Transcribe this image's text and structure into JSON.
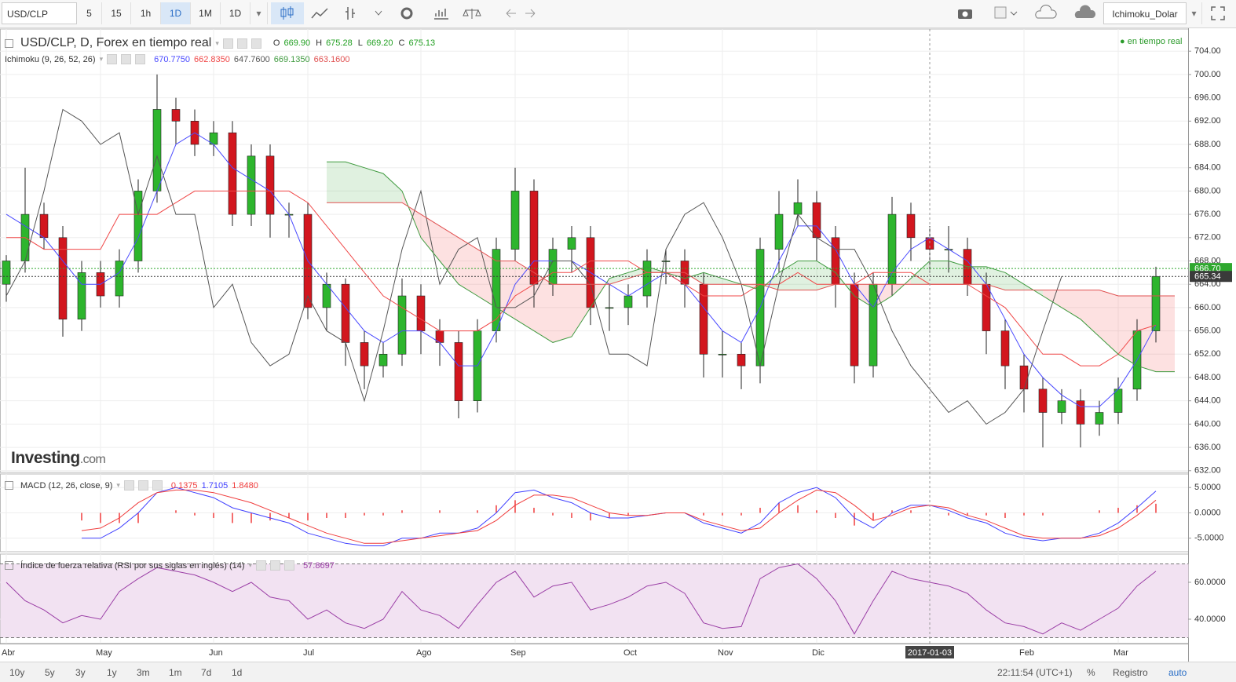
{
  "toolbar": {
    "symbol": "USD/CLP",
    "intervals": [
      "5",
      "15",
      "1h",
      "1D",
      "1M",
      "1D"
    ],
    "active_interval": 3,
    "template": "Ichimoku_Dolar"
  },
  "status": {
    "live": "en tiempo real"
  },
  "logo": {
    "brand": "Investing",
    "suffix": ".com"
  },
  "footer": {
    "ranges": [
      "10y",
      "5y",
      "3y",
      "1y",
      "3m",
      "1m",
      "7d",
      "1d"
    ],
    "time": "22:11:54 (UTC+1)",
    "percent": "%",
    "log": "Registro",
    "auto": "auto"
  },
  "chart_data": [
    {
      "type": "candlestick",
      "title": "USD/CLP, D, Forex en tiempo real",
      "ohlc_legend": [
        {
          "label": "O",
          "value": "669.90"
        },
        {
          "label": "H",
          "value": "675.28"
        },
        {
          "label": "L",
          "value": "669.20"
        },
        {
          "label": "C",
          "value": "675.13"
        }
      ],
      "categories": [
        "Abr",
        null,
        null,
        null,
        null,
        "May",
        null,
        null,
        null,
        null,
        null,
        "Jun",
        null,
        null,
        null,
        null,
        "Jul",
        null,
        null,
        null,
        null,
        null,
        "Ago",
        null,
        null,
        null,
        null,
        "Sep",
        null,
        null,
        null,
        null,
        null,
        "Oct",
        null,
        null,
        null,
        null,
        "Nov",
        null,
        null,
        null,
        null,
        "Dic",
        null,
        null,
        null,
        null,
        null,
        "2017-01-03",
        null,
        null,
        null,
        null,
        "Feb",
        null,
        null,
        null,
        null,
        "Mar",
        null,
        null,
        null
      ],
      "highlight_category": 49,
      "open": [
        664,
        668,
        676,
        672,
        658,
        666,
        662,
        668,
        680,
        694,
        692,
        688,
        690,
        676,
        686,
        676,
        676,
        660,
        664,
        654,
        650,
        652,
        662,
        656,
        654,
        644,
        656,
        670,
        680,
        664,
        670,
        672,
        660,
        660,
        662,
        668,
        668,
        664,
        652,
        652,
        650,
        670,
        676,
        678,
        672,
        664,
        650,
        664,
        676,
        672,
        670,
        670,
        664,
        656,
        650,
        646,
        642,
        644,
        640,
        642,
        646,
        656,
        null
      ],
      "high": [
        669,
        684,
        678,
        674,
        668,
        668,
        670,
        682,
        700,
        696,
        694,
        692,
        692,
        688,
        688,
        678,
        678,
        666,
        665,
        656,
        654,
        665,
        664,
        658,
        656,
        658,
        672,
        684,
        682,
        672,
        674,
        674,
        664,
        664,
        670,
        670,
        670,
        666,
        656,
        654,
        672,
        680,
        682,
        680,
        674,
        666,
        666,
        679,
        678,
        674,
        674,
        672,
        666,
        658,
        652,
        648,
        646,
        646,
        644,
        648,
        658,
        667,
        null
      ],
      "low": [
        661,
        666,
        670,
        655,
        656,
        660,
        660,
        666,
        678,
        688,
        686,
        686,
        674,
        674,
        672,
        672,
        658,
        656,
        650,
        646,
        648,
        650,
        652,
        650,
        641,
        642,
        654,
        668,
        660,
        662,
        666,
        657,
        656,
        657,
        660,
        664,
        660,
        648,
        648,
        646,
        647,
        666,
        674,
        668,
        660,
        647,
        648,
        662,
        668,
        666,
        666,
        662,
        652,
        646,
        642,
        636,
        640,
        636,
        638,
        640,
        644,
        654,
        null
      ],
      "close": [
        668,
        676,
        672,
        658,
        666,
        662,
        668,
        680,
        694,
        692,
        688,
        690,
        676,
        686,
        676,
        676,
        660,
        664,
        654,
        650,
        652,
        662,
        656,
        654,
        644,
        656,
        670,
        680,
        664,
        670,
        672,
        660,
        660,
        662,
        668,
        668,
        664,
        652,
        652,
        650,
        670,
        676,
        678,
        672,
        664,
        650,
        664,
        676,
        672,
        670,
        670,
        664,
        656,
        650,
        646,
        642,
        644,
        640,
        642,
        646,
        656,
        665.34,
        null
      ],
      "up_color": "#2db52d",
      "down_color": "#d2161e",
      "indicator": "Ichimoku (9, 26, 52, 26)",
      "series": [
        {
          "color": "#4a4aff",
          "legend_value": "670.7750",
          "values": [
            676,
            674,
            672,
            668,
            664,
            664,
            666,
            672,
            680,
            688,
            690,
            688,
            684,
            682,
            680,
            676,
            668,
            664,
            660,
            656,
            654,
            656,
            656,
            654,
            650,
            650,
            656,
            664,
            668,
            668,
            668,
            666,
            664,
            662,
            664,
            666,
            664,
            660,
            656,
            654,
            660,
            668,
            674,
            674,
            670,
            664,
            660,
            666,
            670,
            672,
            670,
            668,
            664,
            658,
            652,
            648,
            645,
            643,
            643,
            646,
            651,
            657,
            null
          ]
        },
        {
          "color": "#f04848",
          "legend_value": "662.8350",
          "values": [
            672,
            672,
            670,
            670,
            670,
            670,
            676,
            676,
            676,
            678,
            680,
            680,
            680,
            680,
            680,
            680,
            678,
            674,
            670,
            666,
            662,
            660,
            658,
            656,
            656,
            656,
            658,
            662,
            664,
            666,
            666,
            668,
            668,
            668,
            666,
            666,
            664,
            662,
            662,
            662,
            664,
            664,
            666,
            664,
            664,
            664,
            666,
            666,
            666,
            664,
            664,
            664,
            662,
            660,
            656,
            652,
            652,
            650,
            650,
            652,
            656,
            657,
            null
          ]
        },
        {
          "color": "#555555",
          "legend_value": "647.7600",
          "values": [
            662,
            668,
            680,
            694,
            692,
            688,
            690,
            676,
            686,
            676,
            676,
            660,
            664,
            654,
            650,
            652,
            662,
            656,
            654,
            644,
            656,
            670,
            680,
            664,
            670,
            672,
            660,
            660,
            662,
            668,
            668,
            664,
            652,
            652,
            650,
            670,
            676,
            678,
            672,
            664,
            650,
            664,
            676,
            672,
            670,
            670,
            664,
            656,
            650,
            646,
            642,
            644,
            640,
            642,
            646,
            656,
            665.34,
            null,
            null,
            null,
            null,
            null,
            null
          ]
        },
        {
          "color": "#3f9a3f",
          "legend_value": "669.1350",
          "values": [
            null,
            null,
            null,
            null,
            null,
            null,
            null,
            null,
            null,
            null,
            null,
            null,
            null,
            null,
            null,
            null,
            null,
            685,
            685,
            684,
            683,
            680,
            672,
            668,
            664,
            662,
            660,
            658,
            656,
            654,
            655,
            660,
            665,
            666,
            667,
            666,
            665,
            666,
            665,
            664,
            663,
            666,
            668,
            668,
            666,
            662,
            660,
            662,
            665,
            668,
            668,
            667,
            667,
            666,
            664,
            662,
            660,
            658,
            655,
            652,
            650,
            649,
            649
          ]
        },
        {
          "color": "#e05050",
          "legend_value": "663.1600",
          "values": [
            null,
            null,
            null,
            null,
            null,
            null,
            null,
            null,
            null,
            null,
            null,
            null,
            null,
            null,
            null,
            null,
            null,
            678,
            678,
            678,
            678,
            678,
            676,
            674,
            672,
            670,
            668,
            668,
            666,
            664,
            664,
            664,
            664,
            665,
            666,
            666,
            666,
            664,
            664,
            664,
            664,
            663,
            663,
            663,
            664,
            664,
            664,
            664,
            664,
            664,
            664,
            664,
            664,
            663,
            663,
            663,
            663,
            663,
            663,
            662,
            662,
            662,
            662
          ]
        }
      ],
      "cloud_colors": {
        "up": "rgba(60,170,60,0.16)",
        "down": "rgba(240,70,70,0.16)"
      },
      "ylim": [
        631.7,
        707.8
      ],
      "yticks": [
        {
          "value": 632,
          "label": "632.00"
        },
        {
          "value": 636,
          "label": "636.00"
        },
        {
          "value": 640,
          "label": "640.00"
        },
        {
          "value": 644,
          "label": "644.00"
        },
        {
          "value": 648,
          "label": "648.00"
        },
        {
          "value": 652,
          "label": "652.00"
        },
        {
          "value": 656,
          "label": "656.00"
        },
        {
          "value": 660,
          "label": "660.00"
        },
        {
          "value": 664,
          "label": "664.00"
        },
        {
          "value": 668,
          "label": "668.00"
        },
        {
          "value": 672,
          "label": "672.00"
        },
        {
          "value": 676,
          "label": "676.00"
        },
        {
          "value": 680,
          "label": "680.00"
        },
        {
          "value": 684,
          "label": "684.00"
        },
        {
          "value": 688,
          "label": "688.00"
        },
        {
          "value": 692,
          "label": "692.00"
        },
        {
          "value": 696,
          "label": "696.00"
        },
        {
          "value": 700,
          "label": "700.00"
        },
        {
          "value": 704,
          "label": "704.00"
        }
      ],
      "price_markers": [
        {
          "value": 666.7,
          "label": "666.70",
          "color": "#2fa82f"
        },
        {
          "value": 665.34,
          "label": "665.34",
          "color": "#3a3a3a"
        }
      ],
      "grid": true
    },
    {
      "type": "combo",
      "title": "MACD (12, 26, close, 9)",
      "series": [
        {
          "style": "histogram",
          "color": "#f03c3c",
          "legend_value": "0.1375",
          "values": [
            null,
            null,
            null,
            null,
            -1.5,
            -2,
            -2,
            -2,
            0,
            0.5,
            -0.5,
            -1,
            -2,
            -2,
            -1.5,
            -1,
            -1.5,
            -1,
            -1,
            -0.5,
            -0.5,
            0.5,
            0,
            0.5,
            0,
            0.5,
            1.5,
            2.5,
            1,
            -0.5,
            -1,
            -1.5,
            -1,
            -0.5,
            0,
            0,
            0,
            -0.5,
            -0.5,
            -0.5,
            1,
            2,
            1.5,
            0.5,
            -1,
            -2.5,
            -1.5,
            0.5,
            0.5,
            0,
            -0.5,
            -0.5,
            -0.5,
            -1,
            -0.5,
            -0.5,
            0,
            0,
            0.5,
            1,
            1.5,
            1.8,
            null
          ]
        },
        {
          "style": "line",
          "color": "#4040ff",
          "legend_value": "1.7105",
          "values": [
            null,
            null,
            null,
            null,
            -5,
            -5,
            -3,
            0,
            4,
            5,
            4,
            3,
            1,
            0,
            -1,
            -2,
            -4,
            -5,
            -6,
            -6.5,
            -6.5,
            -5,
            -5,
            -4,
            -4,
            -3,
            0,
            4,
            4.5,
            3,
            2,
            0,
            -1,
            -1,
            -0.5,
            0,
            0,
            -2,
            -3,
            -4,
            -2,
            2,
            4,
            5,
            3,
            -1,
            -3,
            0,
            1.5,
            1.5,
            0.5,
            -1,
            -2,
            -4,
            -5,
            -5.5,
            -5,
            -5,
            -4,
            -2,
            1,
            4.3,
            null
          ]
        },
        {
          "style": "line",
          "color": "#f03c3c",
          "legend_value": "1.8480",
          "values": [
            null,
            null,
            null,
            null,
            -3.5,
            -3,
            -1,
            2,
            4,
            4.5,
            4.5,
            4,
            3,
            2,
            0.5,
            -1,
            -2.5,
            -4,
            -5,
            -6,
            -6,
            -5.5,
            -5,
            -4.5,
            -4,
            -3.5,
            -1.5,
            1.5,
            3.5,
            3.5,
            3,
            1.5,
            0,
            -0.5,
            -0.5,
            0,
            0,
            -1.5,
            -2.5,
            -3.5,
            -3,
            0,
            2.5,
            4.5,
            4,
            1.5,
            -1.5,
            -0.5,
            1,
            1.5,
            1,
            -0.5,
            -1.5,
            -3,
            -4.5,
            -5,
            -5,
            -5,
            -4.5,
            -3,
            -0.5,
            2.5,
            null
          ]
        }
      ],
      "ylim": [
        -7.66,
        7.66
      ],
      "yticks": [
        {
          "value": 5,
          "label": "5.0000"
        },
        {
          "value": 0,
          "label": "0.0000"
        },
        {
          "value": -5,
          "label": "-5.0000"
        }
      ]
    },
    {
      "type": "line",
      "title": "Índice de fuerza relativa (RSI por sus siglas en inglés) (14)",
      "series": [
        {
          "style": "line",
          "color": "#9b3fa6",
          "legend_value": "57.8697",
          "values": [
            60,
            50,
            45,
            38,
            42,
            40,
            55,
            62,
            68,
            66,
            64,
            60,
            55,
            60,
            52,
            50,
            40,
            45,
            38,
            35,
            40,
            55,
            45,
            42,
            35,
            48,
            60,
            66,
            52,
            58,
            60,
            45,
            48,
            52,
            58,
            60,
            54,
            38,
            35,
            36,
            62,
            68,
            70,
            62,
            50,
            32,
            50,
            66,
            62,
            60,
            58,
            54,
            45,
            38,
            36,
            32,
            38,
            34,
            40,
            46,
            58,
            66,
            null
          ]
        }
      ],
      "band": [
        30,
        70
      ],
      "band_color": "#f2e2f2",
      "ylim": [
        26.8,
        75.3
      ],
      "yticks": [
        {
          "value": 60,
          "label": "60.0000"
        },
        {
          "value": 40,
          "label": "40.0000"
        }
      ]
    }
  ]
}
